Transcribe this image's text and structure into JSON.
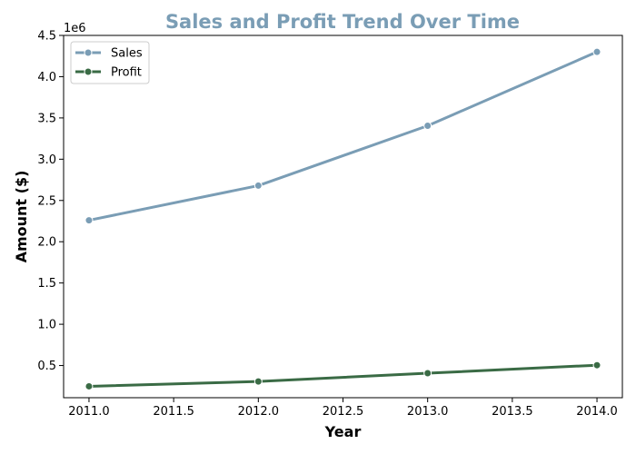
{
  "chart_data": {
    "type": "line",
    "title": "Sales and Profit Trend Over Time",
    "xlabel": "Year",
    "ylabel": "Amount ($)",
    "y_offset_label": "1e6",
    "x": [
      2011,
      2012,
      2013,
      2014
    ],
    "xlim": [
      2010.85,
      2014.15
    ],
    "ylim": [
      110000,
      4500000
    ],
    "x_ticks": [
      2011.0,
      2011.5,
      2012.0,
      2012.5,
      2013.0,
      2013.5,
      2014.0
    ],
    "x_tick_labels": [
      "2011.0",
      "2011.5",
      "2012.0",
      "2012.5",
      "2013.0",
      "2013.5",
      "2014.0"
    ],
    "y_ticks": [
      500000,
      1000000,
      1500000,
      2000000,
      2500000,
      3000000,
      3500000,
      4000000,
      4500000
    ],
    "y_tick_labels": [
      "0.5",
      "1.0",
      "1.5",
      "2.0",
      "2.5",
      "3.0",
      "3.5",
      "4.0",
      "4.5"
    ],
    "grid": false,
    "legend_position": "top-left",
    "series": [
      {
        "name": "Sales",
        "color": "#7a9db5",
        "values": [
          2260000,
          2680000,
          3405000,
          4300000
        ]
      },
      {
        "name": "Profit",
        "color": "#3a6b45",
        "values": [
          248000,
          307000,
          407000,
          504000
        ]
      }
    ]
  }
}
